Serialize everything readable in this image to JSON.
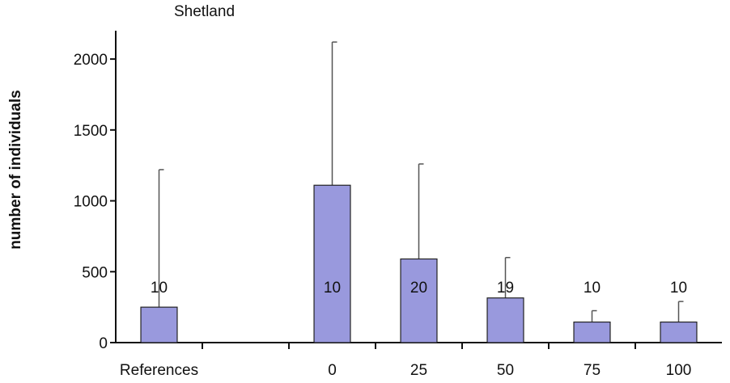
{
  "chart_data": {
    "type": "bar",
    "title": "Shetland",
    "xlabel": "",
    "ylabel": "number of individuals",
    "ylim": [
      0,
      2200
    ],
    "yticks": [
      0,
      500,
      1000,
      1500,
      2000
    ],
    "grid": false,
    "legend": "none",
    "bar_color": "#9999dd",
    "categories": [
      "References",
      "",
      "0",
      "25",
      "50",
      "75",
      "100"
    ],
    "values": [
      250,
      null,
      1110,
      590,
      315,
      145,
      145
    ],
    "error_upper": [
      1220,
      null,
      2120,
      1260,
      600,
      225,
      290
    ],
    "n_labels": [
      "10",
      "",
      "10",
      "20",
      "19",
      "10",
      "10"
    ]
  }
}
